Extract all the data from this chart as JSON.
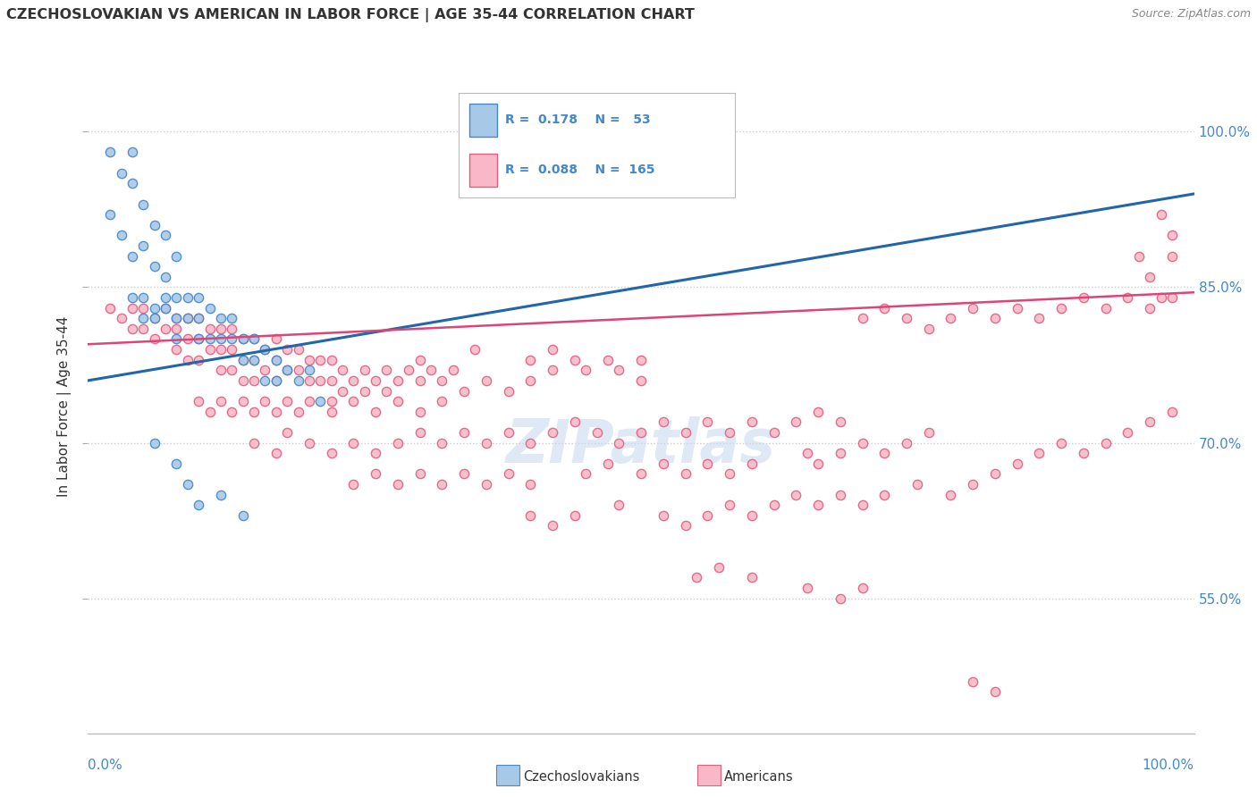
{
  "title": "CZECHOSLOVAKIAN VS AMERICAN IN LABOR FORCE | AGE 35-44 CORRELATION CHART",
  "source": "Source: ZipAtlas.com",
  "ylabel": "In Labor Force | Age 35-44",
  "ytick_labels": [
    "55.0%",
    "70.0%",
    "85.0%",
    "100.0%"
  ],
  "ytick_values": [
    0.55,
    0.7,
    0.85,
    1.0
  ],
  "blue_fill": "#a8c8e8",
  "blue_edge": "#4488cc",
  "pink_fill": "#f8b8c8",
  "pink_edge": "#e06080",
  "blue_line_color": "#2266aa",
  "pink_line_color": "#dd4477",
  "blue_scatter": [
    [
      0.02,
      0.98
    ],
    [
      0.03,
      0.96
    ],
    [
      0.04,
      0.98
    ],
    [
      0.04,
      0.95
    ],
    [
      0.02,
      0.92
    ],
    [
      0.03,
      0.9
    ],
    [
      0.04,
      0.88
    ],
    [
      0.05,
      0.93
    ],
    [
      0.05,
      0.89
    ],
    [
      0.06,
      0.91
    ],
    [
      0.06,
      0.87
    ],
    [
      0.07,
      0.9
    ],
    [
      0.07,
      0.86
    ],
    [
      0.08,
      0.88
    ],
    [
      0.04,
      0.84
    ],
    [
      0.05,
      0.84
    ],
    [
      0.05,
      0.82
    ],
    [
      0.06,
      0.83
    ],
    [
      0.06,
      0.82
    ],
    [
      0.07,
      0.84
    ],
    [
      0.07,
      0.83
    ],
    [
      0.08,
      0.84
    ],
    [
      0.08,
      0.82
    ],
    [
      0.08,
      0.8
    ],
    [
      0.09,
      0.84
    ],
    [
      0.09,
      0.82
    ],
    [
      0.1,
      0.84
    ],
    [
      0.1,
      0.82
    ],
    [
      0.1,
      0.8
    ],
    [
      0.11,
      0.83
    ],
    [
      0.11,
      0.8
    ],
    [
      0.12,
      0.82
    ],
    [
      0.12,
      0.8
    ],
    [
      0.13,
      0.82
    ],
    [
      0.13,
      0.8
    ],
    [
      0.14,
      0.8
    ],
    [
      0.14,
      0.78
    ],
    [
      0.15,
      0.8
    ],
    [
      0.15,
      0.78
    ],
    [
      0.16,
      0.79
    ],
    [
      0.16,
      0.76
    ],
    [
      0.17,
      0.78
    ],
    [
      0.17,
      0.76
    ],
    [
      0.18,
      0.77
    ],
    [
      0.19,
      0.76
    ],
    [
      0.2,
      0.77
    ],
    [
      0.21,
      0.74
    ],
    [
      0.06,
      0.7
    ],
    [
      0.08,
      0.68
    ],
    [
      0.09,
      0.66
    ],
    [
      0.1,
      0.64
    ],
    [
      0.12,
      0.65
    ],
    [
      0.14,
      0.63
    ]
  ],
  "pink_scatter": [
    [
      0.02,
      0.83
    ],
    [
      0.03,
      0.82
    ],
    [
      0.04,
      0.83
    ],
    [
      0.04,
      0.81
    ],
    [
      0.05,
      0.83
    ],
    [
      0.05,
      0.81
    ],
    [
      0.06,
      0.82
    ],
    [
      0.06,
      0.8
    ],
    [
      0.07,
      0.83
    ],
    [
      0.07,
      0.81
    ],
    [
      0.08,
      0.82
    ],
    [
      0.08,
      0.81
    ],
    [
      0.08,
      0.79
    ],
    [
      0.09,
      0.82
    ],
    [
      0.09,
      0.8
    ],
    [
      0.09,
      0.78
    ],
    [
      0.1,
      0.82
    ],
    [
      0.1,
      0.8
    ],
    [
      0.1,
      0.78
    ],
    [
      0.11,
      0.81
    ],
    [
      0.11,
      0.79
    ],
    [
      0.12,
      0.81
    ],
    [
      0.12,
      0.79
    ],
    [
      0.12,
      0.77
    ],
    [
      0.13,
      0.81
    ],
    [
      0.13,
      0.79
    ],
    [
      0.13,
      0.77
    ],
    [
      0.14,
      0.8
    ],
    [
      0.14,
      0.78
    ],
    [
      0.14,
      0.76
    ],
    [
      0.15,
      0.8
    ],
    [
      0.15,
      0.78
    ],
    [
      0.15,
      0.76
    ],
    [
      0.16,
      0.79
    ],
    [
      0.16,
      0.77
    ],
    [
      0.17,
      0.8
    ],
    [
      0.17,
      0.78
    ],
    [
      0.17,
      0.76
    ],
    [
      0.18,
      0.79
    ],
    [
      0.18,
      0.77
    ],
    [
      0.19,
      0.79
    ],
    [
      0.19,
      0.77
    ],
    [
      0.2,
      0.78
    ],
    [
      0.2,
      0.76
    ],
    [
      0.21,
      0.78
    ],
    [
      0.21,
      0.76
    ],
    [
      0.22,
      0.78
    ],
    [
      0.22,
      0.76
    ],
    [
      0.22,
      0.74
    ],
    [
      0.23,
      0.77
    ],
    [
      0.23,
      0.75
    ],
    [
      0.24,
      0.76
    ],
    [
      0.25,
      0.77
    ],
    [
      0.25,
      0.75
    ],
    [
      0.26,
      0.76
    ],
    [
      0.27,
      0.77
    ],
    [
      0.27,
      0.75
    ],
    [
      0.28,
      0.76
    ],
    [
      0.29,
      0.77
    ],
    [
      0.3,
      0.78
    ],
    [
      0.3,
      0.76
    ],
    [
      0.31,
      0.77
    ],
    [
      0.32,
      0.76
    ],
    [
      0.33,
      0.77
    ],
    [
      0.1,
      0.74
    ],
    [
      0.11,
      0.73
    ],
    [
      0.12,
      0.74
    ],
    [
      0.13,
      0.73
    ],
    [
      0.14,
      0.74
    ],
    [
      0.15,
      0.73
    ],
    [
      0.16,
      0.74
    ],
    [
      0.17,
      0.73
    ],
    [
      0.18,
      0.74
    ],
    [
      0.19,
      0.73
    ],
    [
      0.2,
      0.74
    ],
    [
      0.22,
      0.73
    ],
    [
      0.24,
      0.74
    ],
    [
      0.26,
      0.73
    ],
    [
      0.28,
      0.74
    ],
    [
      0.3,
      0.73
    ],
    [
      0.32,
      0.74
    ],
    [
      0.34,
      0.75
    ],
    [
      0.36,
      0.76
    ],
    [
      0.38,
      0.75
    ],
    [
      0.35,
      0.79
    ],
    [
      0.4,
      0.78
    ],
    [
      0.4,
      0.76
    ],
    [
      0.42,
      0.79
    ],
    [
      0.42,
      0.77
    ],
    [
      0.44,
      0.78
    ],
    [
      0.45,
      0.77
    ],
    [
      0.47,
      0.78
    ],
    [
      0.48,
      0.77
    ],
    [
      0.5,
      0.78
    ],
    [
      0.5,
      0.76
    ],
    [
      0.15,
      0.7
    ],
    [
      0.17,
      0.69
    ],
    [
      0.18,
      0.71
    ],
    [
      0.2,
      0.7
    ],
    [
      0.22,
      0.69
    ],
    [
      0.24,
      0.7
    ],
    [
      0.26,
      0.69
    ],
    [
      0.28,
      0.7
    ],
    [
      0.3,
      0.71
    ],
    [
      0.32,
      0.7
    ],
    [
      0.34,
      0.71
    ],
    [
      0.36,
      0.7
    ],
    [
      0.38,
      0.71
    ],
    [
      0.4,
      0.7
    ],
    [
      0.42,
      0.71
    ],
    [
      0.44,
      0.72
    ],
    [
      0.46,
      0.71
    ],
    [
      0.48,
      0.7
    ],
    [
      0.5,
      0.71
    ],
    [
      0.52,
      0.72
    ],
    [
      0.54,
      0.71
    ],
    [
      0.56,
      0.72
    ],
    [
      0.58,
      0.71
    ],
    [
      0.6,
      0.72
    ],
    [
      0.62,
      0.71
    ],
    [
      0.64,
      0.72
    ],
    [
      0.66,
      0.73
    ],
    [
      0.68,
      0.72
    ],
    [
      0.24,
      0.66
    ],
    [
      0.26,
      0.67
    ],
    [
      0.28,
      0.66
    ],
    [
      0.3,
      0.67
    ],
    [
      0.32,
      0.66
    ],
    [
      0.34,
      0.67
    ],
    [
      0.36,
      0.66
    ],
    [
      0.38,
      0.67
    ],
    [
      0.4,
      0.66
    ],
    [
      0.45,
      0.67
    ],
    [
      0.47,
      0.68
    ],
    [
      0.5,
      0.67
    ],
    [
      0.52,
      0.68
    ],
    [
      0.54,
      0.67
    ],
    [
      0.56,
      0.68
    ],
    [
      0.58,
      0.67
    ],
    [
      0.6,
      0.68
    ],
    [
      0.65,
      0.69
    ],
    [
      0.66,
      0.68
    ],
    [
      0.68,
      0.69
    ],
    [
      0.7,
      0.7
    ],
    [
      0.72,
      0.69
    ],
    [
      0.74,
      0.7
    ],
    [
      0.76,
      0.71
    ],
    [
      0.4,
      0.63
    ],
    [
      0.42,
      0.62
    ],
    [
      0.44,
      0.63
    ],
    [
      0.48,
      0.64
    ],
    [
      0.52,
      0.63
    ],
    [
      0.54,
      0.62
    ],
    [
      0.56,
      0.63
    ],
    [
      0.58,
      0.64
    ],
    [
      0.6,
      0.63
    ],
    [
      0.62,
      0.64
    ],
    [
      0.64,
      0.65
    ],
    [
      0.66,
      0.64
    ],
    [
      0.68,
      0.65
    ],
    [
      0.7,
      0.64
    ],
    [
      0.72,
      0.65
    ],
    [
      0.75,
      0.66
    ],
    [
      0.78,
      0.65
    ],
    [
      0.8,
      0.66
    ],
    [
      0.82,
      0.67
    ],
    [
      0.84,
      0.68
    ],
    [
      0.86,
      0.69
    ],
    [
      0.88,
      0.7
    ],
    [
      0.9,
      0.69
    ],
    [
      0.92,
      0.7
    ],
    [
      0.94,
      0.71
    ],
    [
      0.96,
      0.72
    ],
    [
      0.98,
      0.73
    ],
    [
      0.55,
      0.57
    ],
    [
      0.57,
      0.58
    ],
    [
      0.6,
      0.57
    ],
    [
      0.65,
      0.56
    ],
    [
      0.68,
      0.55
    ],
    [
      0.7,
      0.56
    ],
    [
      0.8,
      0.47
    ],
    [
      0.82,
      0.46
    ],
    [
      0.95,
      0.88
    ],
    [
      0.96,
      0.86
    ],
    [
      0.97,
      0.84
    ],
    [
      0.98,
      0.88
    ],
    [
      0.97,
      0.92
    ],
    [
      0.98,
      0.9
    ],
    [
      0.7,
      0.82
    ],
    [
      0.72,
      0.83
    ],
    [
      0.74,
      0.82
    ],
    [
      0.76,
      0.81
    ],
    [
      0.78,
      0.82
    ],
    [
      0.8,
      0.83
    ],
    [
      0.82,
      0.82
    ],
    [
      0.84,
      0.83
    ],
    [
      0.86,
      0.82
    ],
    [
      0.88,
      0.83
    ],
    [
      0.9,
      0.84
    ],
    [
      0.92,
      0.83
    ],
    [
      0.94,
      0.84
    ],
    [
      0.96,
      0.83
    ],
    [
      0.98,
      0.84
    ]
  ],
  "xlim": [
    0.0,
    1.0
  ],
  "ylim": [
    0.42,
    1.05
  ],
  "background_color": "#ffffff",
  "grid_color": "#cccccc",
  "marker_size": 55,
  "marker_linewidth": 1.0
}
